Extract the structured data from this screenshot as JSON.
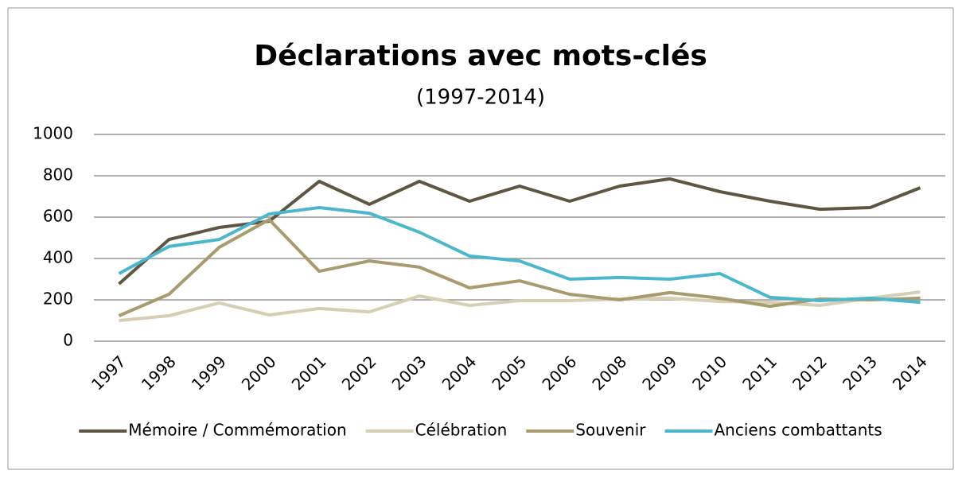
{
  "chart_data": {
    "type": "line",
    "title": "Déclarations avec mots-clés",
    "subtitle": "(1997-2014)",
    "categories": [
      "1997",
      "1998",
      "1999",
      "2000",
      "2001",
      "2002",
      "2003",
      "2004",
      "2005",
      "2006",
      "2008",
      "2009",
      "2010",
      "2011",
      "2012",
      "2013",
      "2014"
    ],
    "series": [
      {
        "name": "Mémoire / Commémoration",
        "color": "#5e5642",
        "values": [
          277,
          492,
          550,
          580,
          773,
          662,
          773,
          677,
          750,
          677,
          750,
          785,
          723,
          677,
          638,
          646,
          742
        ]
      },
      {
        "name": "Célébration",
        "color": "#d5cfb4",
        "values": [
          100,
          123,
          185,
          127,
          158,
          142,
          219,
          173,
          196,
          196,
          204,
          208,
          192,
          188,
          173,
          208,
          238
        ]
      },
      {
        "name": "Souvenir",
        "color": "#a89b6e",
        "values": [
          123,
          227,
          454,
          588,
          338,
          388,
          358,
          258,
          292,
          227,
          200,
          235,
          208,
          169,
          204,
          200,
          208
        ]
      },
      {
        "name": "Anciens combattants",
        "color": "#4bb7cc",
        "values": [
          327,
          458,
          492,
          615,
          646,
          619,
          527,
          412,
          388,
          300,
          308,
          300,
          327,
          212,
          196,
          208,
          188
        ]
      }
    ],
    "ylim": [
      0,
      1000
    ],
    "yticks": [
      0,
      200,
      400,
      600,
      800,
      1000
    ],
    "grid": true,
    "legend": "bottom"
  }
}
